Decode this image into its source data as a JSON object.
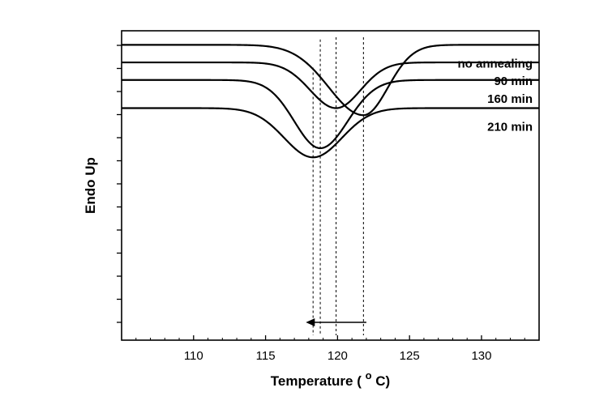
{
  "chart_data": {
    "type": "line",
    "title": "",
    "xlabel": "Temperature (°C)",
    "xlabel_parts": {
      "main": "Temperature (",
      "sup": "o",
      "unit": "C)"
    },
    "ylabel": "Endo Up",
    "xlim": [
      105.0,
      134.0
    ],
    "x_ticks": [
      110,
      115,
      120,
      125,
      130
    ],
    "x_tick_labels": [
      "110",
      "115",
      "120",
      "125",
      "130"
    ],
    "y_ticks_count": 13,
    "y_ticks_unlabeled": true,
    "grid": false,
    "legend": "inline labels on right",
    "series": [
      {
        "name": "no annealing",
        "baseline": 100,
        "peak_x": 121.8,
        "depth": 100,
        "left_width": 2.4,
        "right_width": 1.7
      },
      {
        "name": "90 min",
        "baseline": 75,
        "peak_x": 119.9,
        "depth": 65,
        "left_width": 1.8,
        "right_width": 1.7
      },
      {
        "name": "160 min",
        "baseline": 50,
        "peak_x": 118.8,
        "depth": 97,
        "left_width": 1.8,
        "right_width": 1.9
      },
      {
        "name": "210 min",
        "baseline": 10,
        "peak_x": 118.3,
        "depth": 70,
        "left_width": 2.0,
        "right_width": 2.0
      }
    ],
    "peak_marker_lines": [
      118.3,
      118.8,
      119.9,
      121.8
    ],
    "arrow": {
      "from_x": 122.0,
      "to_x": 117.8,
      "direction": "left"
    }
  }
}
